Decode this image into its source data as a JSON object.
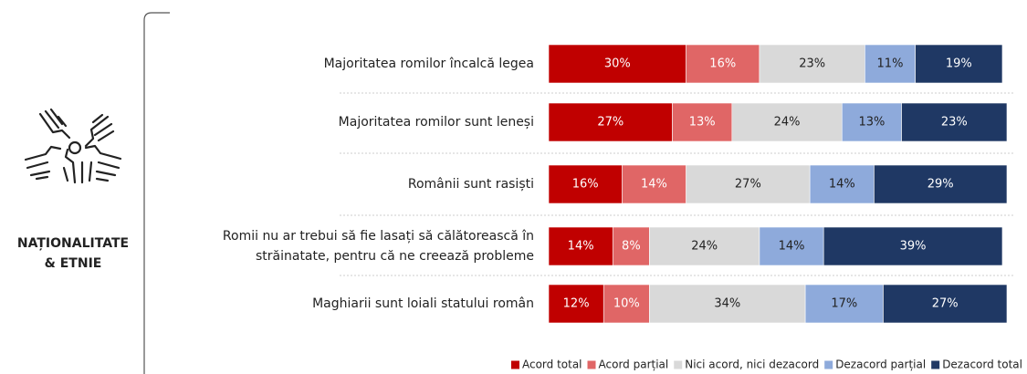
{
  "panel": {
    "label": "NAȚIONALITATE\n& ETNIE"
  },
  "chart_data": {
    "type": "stacked_bar_horizontal",
    "categories": [
      "Majoritatea romilor încalcă legea",
      "Majoritatea romilor sunt leneși",
      "Românii sunt rasiști",
      "Romii nu ar trebui să fie lasați să călătorească în\nstrăinatate, pentru că ne creează probleme",
      "Maghiarii sunt loiali statului român"
    ],
    "xlim": [
      0,
      100
    ],
    "series": [
      {
        "name": "Acord total",
        "color": "#c00000",
        "values": [
          30,
          27,
          16,
          14,
          12
        ],
        "value_labels": [
          "30%",
          "27%",
          "16%",
          "14%",
          "12%"
        ]
      },
      {
        "name": "Acord parțial",
        "color": "#e06666",
        "values": [
          16,
          13,
          14,
          8,
          10
        ],
        "value_labels": [
          "16%",
          "13%",
          "14%",
          "8%",
          "10%"
        ]
      },
      {
        "name": "Nici acord, nici dezacord",
        "color": "#d9d9d9",
        "values": [
          23,
          24,
          27,
          24,
          34
        ],
        "value_labels": [
          "23%",
          "24%",
          "27%",
          "24%",
          "34%"
        ]
      },
      {
        "name": "Dezacord parțial",
        "color": "#8eaadb",
        "values": [
          11,
          13,
          14,
          14,
          17
        ],
        "value_labels": [
          "11%",
          "13%",
          "14%",
          "14%",
          "17%"
        ]
      },
      {
        "name": "Dezacord total",
        "color": "#1f3864",
        "values": [
          19,
          23,
          29,
          39,
          27
        ],
        "value_labels": [
          "19%",
          "23%",
          "29%",
          "39%",
          "27%"
        ]
      }
    ],
    "legend": "bottom-right"
  }
}
